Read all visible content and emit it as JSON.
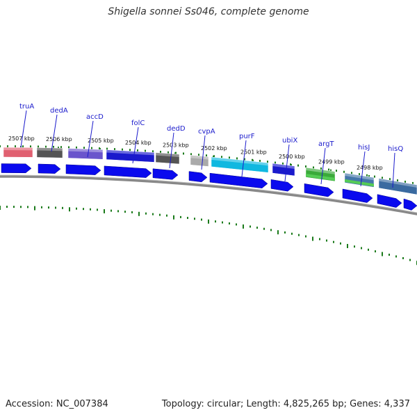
{
  "title": "Shigella sonnei Ss046, complete genome",
  "footer": {
    "accession": "Accession: NC_007384",
    "topology": "Topology: circular; Length: 4,825,265 bp; Genes: 4,337"
  },
  "colors": {
    "cds_arrow": "#0a0aee",
    "gene_label": "#1a1acc",
    "tick_green": "#1a7a1a",
    "backbone": "#888888"
  },
  "gene_labels": [
    "truA",
    "dedA",
    "accD",
    "folC",
    "dedD",
    "cvpA",
    "purF",
    "ubiX",
    "argT",
    "hisJ",
    "hisQ"
  ],
  "tick_labels": [
    "2507 kbp",
    "2506 kbp",
    "2505 kbp",
    "2504 kbp",
    "2503 kbp",
    "2502 kbp",
    "2501 kbp",
    "2500 kbp",
    "2499 kbp",
    "2498 kbp"
  ],
  "feature_colors": [
    "#e06070",
    "#555555",
    "#6a55cc",
    "#1a1acc",
    "#555555",
    "#aaaaaa",
    "#10b8e0",
    "#1a1acc",
    "#3aaa3a",
    "#4477aa",
    "#3a6aa0"
  ]
}
